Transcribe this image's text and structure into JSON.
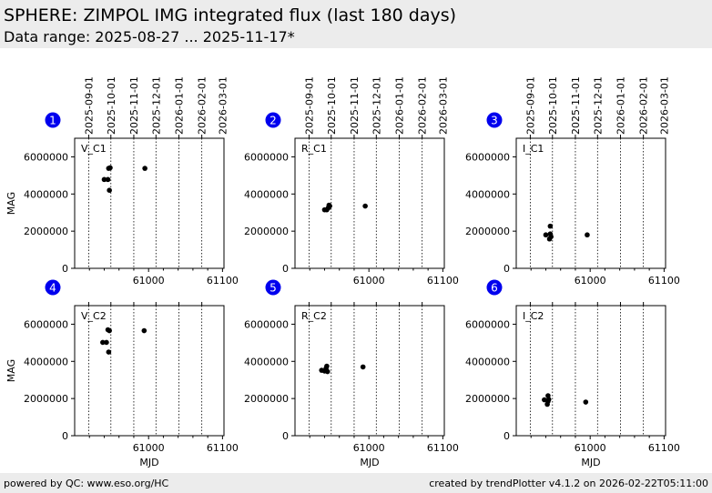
{
  "header": {
    "title": "SPHERE: ZIMPOL IMG integrated flux (last 180 days)",
    "subtitle": "Data range: 2025-08-27 ... 2025-11-17*"
  },
  "footer": {
    "left": "powered by QC: www.eso.org/HC",
    "right": "created by trendPlotter v4.1.2 on 2026-02-22T05:11:00"
  },
  "colors": {
    "badge": "#0000ee",
    "points": "#000000",
    "panel_border": "#000000",
    "header_bg": "#ececec"
  },
  "chart_data": [
    {
      "type": "scatter",
      "panel": "1",
      "label": "V_C1",
      "ylabel": "MAG",
      "xlabel": "",
      "xlim": [
        60900,
        61102
      ],
      "ylim": [
        0,
        7000000
      ],
      "yticks": [
        0,
        2000000,
        4000000,
        6000000
      ],
      "ytick_labels": [
        "0",
        "2000000",
        "4000000",
        "6000000"
      ],
      "xticks": [
        61000,
        61100
      ],
      "xtick_labels": [
        "61000",
        "61100"
      ],
      "top_ticks_mjd": [
        60919,
        60949,
        60980,
        61010,
        61041,
        61072
      ],
      "top_tick_labels": [
        "2025-09-01",
        "2025-10-01",
        "2025-11-01",
        "2025-12-01",
        "2026-01-01",
        "2026-02-01",
        "2026-03-01"
      ],
      "top_tick_labels_mjd": [
        60919,
        60949,
        60980,
        61010,
        61041,
        61072,
        61100
      ],
      "x": [
        60940,
        60945,
        60946,
        60947,
        60948,
        60995
      ],
      "y": [
        4780000,
        4780000,
        5380000,
        4200000,
        5410000,
        5380000
      ]
    },
    {
      "type": "scatter",
      "panel": "2",
      "label": "R_C1",
      "ylabel": "",
      "xlabel": "",
      "xlim": [
        60900,
        61102
      ],
      "ylim": [
        0,
        7000000
      ],
      "yticks": [
        0,
        2000000,
        4000000,
        6000000
      ],
      "ytick_labels": [
        "0",
        "2000000",
        "4000000",
        "6000000"
      ],
      "xticks": [
        61000,
        61100
      ],
      "xtick_labels": [
        "61000",
        "61100"
      ],
      "top_ticks_mjd": [
        60919,
        60949,
        60980,
        61010,
        61041,
        61072
      ],
      "top_tick_labels": [
        "2025-09-01",
        "2025-10-01",
        "2025-11-01",
        "2025-12-01",
        "2026-01-01",
        "2026-02-01",
        "2026-03-01"
      ],
      "top_tick_labels_mjd": [
        60919,
        60949,
        60980,
        61010,
        61041,
        61072,
        61100
      ],
      "x": [
        60940,
        60943,
        60945,
        60946,
        60947,
        60995
      ],
      "y": [
        3150000,
        3150000,
        3250000,
        3400000,
        3350000,
        3350000
      ]
    },
    {
      "type": "scatter",
      "panel": "3",
      "label": "I_C1",
      "ylabel": "",
      "xlabel": "",
      "xlim": [
        60900,
        61102
      ],
      "ylim": [
        0,
        7000000
      ],
      "yticks": [
        0,
        2000000,
        4000000,
        6000000
      ],
      "ytick_labels": [
        "0",
        "2000000",
        "4000000",
        "6000000"
      ],
      "xticks": [
        61000,
        61100
      ],
      "xtick_labels": [
        "61000",
        "61100"
      ],
      "top_ticks_mjd": [
        60919,
        60949,
        60980,
        61010,
        61041,
        61072
      ],
      "top_tick_labels": [
        "2025-09-01",
        "2025-10-01",
        "2025-11-01",
        "2025-12-01",
        "2026-01-01",
        "2026-02-01",
        "2026-03-01"
      ],
      "top_tick_labels_mjd": [
        60919,
        60949,
        60980,
        61010,
        61041,
        61072,
        61100
      ],
      "x": [
        60940,
        60945,
        60946,
        60946,
        60947,
        60996
      ],
      "y": [
        1800000,
        1580000,
        1850000,
        2270000,
        1700000,
        1800000
      ]
    },
    {
      "type": "scatter",
      "panel": "4",
      "label": "V_C2",
      "ylabel": "MAG",
      "xlabel": "MJD",
      "xlim": [
        60900,
        61102
      ],
      "ylim": [
        0,
        7000000
      ],
      "yticks": [
        0,
        2000000,
        4000000,
        6000000
      ],
      "ytick_labels": [
        "0",
        "2000000",
        "4000000",
        "6000000"
      ],
      "xticks": [
        61000,
        61100
      ],
      "xtick_labels": [
        "61000",
        "61100"
      ],
      "top_ticks_mjd": [
        60919,
        60949,
        60980,
        61010,
        61041,
        61072
      ],
      "x": [
        60938,
        60943,
        60945,
        60946,
        60947,
        60994
      ],
      "y": [
        5020000,
        5020000,
        5700000,
        4500000,
        5650000,
        5650000
      ]
    },
    {
      "type": "scatter",
      "panel": "5",
      "label": "R_C2",
      "ylabel": "",
      "xlabel": "MJD",
      "xlim": [
        60900,
        61102
      ],
      "ylim": [
        0,
        7000000
      ],
      "yticks": [
        0,
        2000000,
        4000000,
        6000000
      ],
      "ytick_labels": [
        "0",
        "2000000",
        "4000000",
        "6000000"
      ],
      "xticks": [
        61000,
        61100
      ],
      "xtick_labels": [
        "61000",
        "61100"
      ],
      "top_ticks_mjd": [
        60919,
        60949,
        60980,
        61010,
        61041,
        61072
      ],
      "x": [
        60936,
        60940,
        60942,
        60943,
        60944,
        60992
      ],
      "y": [
        3520000,
        3480000,
        3620000,
        3740000,
        3450000,
        3700000
      ]
    },
    {
      "type": "scatter",
      "panel": "6",
      "label": "I_C2",
      "ylabel": "",
      "xlabel": "MJD",
      "xlim": [
        60900,
        61102
      ],
      "ylim": [
        0,
        7000000
      ],
      "yticks": [
        0,
        2000000,
        4000000,
        6000000
      ],
      "ytick_labels": [
        "0",
        "2000000",
        "4000000",
        "6000000"
      ],
      "xticks": [
        61000,
        61100
      ],
      "xtick_labels": [
        "61000",
        "61100"
      ],
      "top_ticks_mjd": [
        60919,
        60949,
        60980,
        61010,
        61041,
        61072
      ],
      "x": [
        60938,
        60942,
        60943,
        60943,
        60944,
        60994
      ],
      "y": [
        1930000,
        1690000,
        1850000,
        2150000,
        1950000,
        1810000
      ]
    }
  ]
}
